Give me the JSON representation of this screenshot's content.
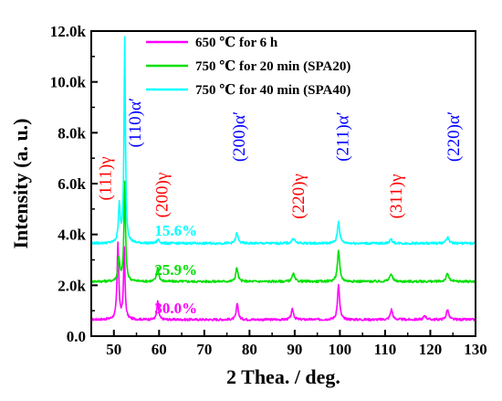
{
  "chart_data": {
    "type": "line",
    "xlabel": "2 Thea. / deg.",
    "ylabel": "Intensity (a. u.)",
    "xlim": [
      45,
      130
    ],
    "ylim": [
      0,
      12000
    ],
    "x_ticks": [
      "50",
      "60",
      "70",
      "80",
      "90",
      "100",
      "110",
      "120",
      "130"
    ],
    "y_ticks": [
      "0.0",
      "2.0k",
      "4.0k",
      "6.0k",
      "8.0k",
      "10.0k",
      "12.0k"
    ],
    "legend_position": "top-left",
    "series": [
      {
        "name": "650 ℃ for 6 h",
        "color": "#ff00ff",
        "baseline": 650,
        "peaks": [
          {
            "x": 50.9,
            "height": 2950,
            "width": 0.45
          },
          {
            "x": 52.3,
            "height": 2750,
            "width": 0.4
          },
          {
            "x": 59.7,
            "height": 700,
            "width": 0.45
          },
          {
            "x": 77.3,
            "height": 650,
            "width": 0.5
          },
          {
            "x": 89.5,
            "height": 400,
            "width": 0.6
          },
          {
            "x": 99.7,
            "height": 1350,
            "width": 0.55
          },
          {
            "x": 111.4,
            "height": 400,
            "width": 0.6
          },
          {
            "x": 118.8,
            "height": 150,
            "width": 0.7
          },
          {
            "x": 123.8,
            "height": 400,
            "width": 0.6
          }
        ]
      },
      {
        "name": "750 ℃ for 20 min (SPA20)",
        "color": "#00e000",
        "baseline": 2150,
        "peaks": [
          {
            "x": 51.1,
            "height": 900,
            "width": 0.5
          },
          {
            "x": 52.4,
            "height": 3900,
            "width": 0.42
          },
          {
            "x": 59.7,
            "height": 550,
            "width": 0.55
          },
          {
            "x": 77.2,
            "height": 550,
            "width": 0.55
          },
          {
            "x": 89.7,
            "height": 300,
            "width": 0.65
          },
          {
            "x": 99.7,
            "height": 1200,
            "width": 0.6
          },
          {
            "x": 111.3,
            "height": 300,
            "width": 0.7
          },
          {
            "x": 123.8,
            "height": 300,
            "width": 0.7
          }
        ]
      },
      {
        "name": "750 ℃ for 40 min (SPA40)",
        "color": "#00ffff",
        "baseline": 3650,
        "peaks": [
          {
            "x": 51.2,
            "height": 1500,
            "width": 0.45
          },
          {
            "x": 52.4,
            "height": 8050,
            "width": 0.38
          },
          {
            "x": 59.8,
            "height": 150,
            "width": 0.6
          },
          {
            "x": 77.2,
            "height": 400,
            "width": 0.6
          },
          {
            "x": 89.7,
            "height": 200,
            "width": 0.7
          },
          {
            "x": 99.7,
            "height": 850,
            "width": 0.6
          },
          {
            "x": 111.3,
            "height": 150,
            "width": 0.7
          },
          {
            "x": 123.8,
            "height": 250,
            "width": 0.7
          }
        ]
      }
    ],
    "peak_labels": [
      {
        "text": "(111)γ",
        "color": "#ff0000",
        "x": 48.5,
        "y": 6200
      },
      {
        "text": "(110)α′",
        "color": "#0000ff",
        "x": 55.0,
        "y": 8400
      },
      {
        "text": "(200)γ",
        "color": "#ff0000",
        "x": 61.0,
        "y": 5550
      },
      {
        "text": "(200)α′",
        "color": "#0000ff",
        "x": 78.0,
        "y": 7850
      },
      {
        "text": "(220)γ",
        "color": "#ff0000",
        "x": 91.2,
        "y": 5500
      },
      {
        "text": "(211)α′",
        "color": "#0000ff",
        "x": 101.0,
        "y": 7850
      },
      {
        "text": "(311)γ",
        "color": "#ff0000",
        "x": 112.8,
        "y": 5500
      },
      {
        "text": "(220)α′",
        "color": "#0000ff",
        "x": 125.5,
        "y": 7850
      }
    ],
    "fraction_labels": [
      {
        "text": "15.6%",
        "color": "#00ffff",
        "x": 59.0,
        "y": 3950
      },
      {
        "text": "25.9%",
        "color": "#00e000",
        "x": 59.0,
        "y": 2400
      },
      {
        "text": "30.0%",
        "color": "#ff00ff",
        "x": 59.0,
        "y": 900
      }
    ]
  }
}
